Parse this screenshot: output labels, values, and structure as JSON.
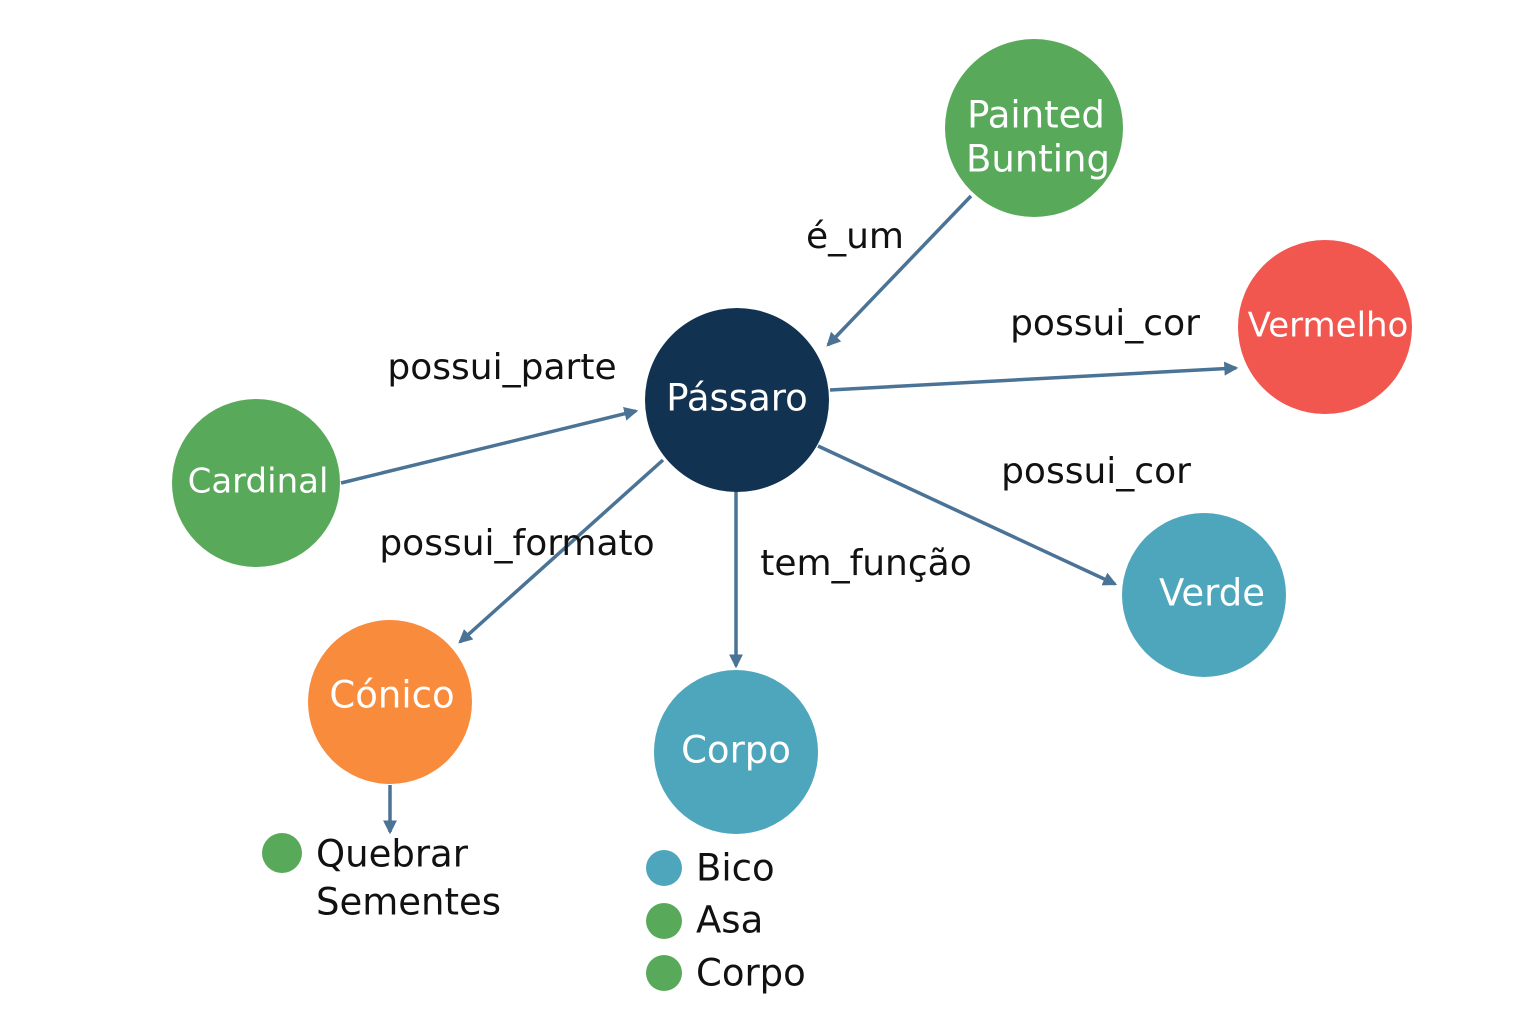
{
  "colors": {
    "edge": "#4a7396",
    "navy": "#123251",
    "green": "#58aa5a",
    "red": "#f1564f",
    "teal": "#4ea6bd",
    "orange": "#f98b3d"
  },
  "nodes": {
    "passaro": {
      "label": "Pássaro",
      "color": "#123251"
    },
    "painted_bunting": {
      "line1": "Painted",
      "line2": "Bunting",
      "color": "#58aa5a"
    },
    "vermelho": {
      "label": "Vermelho",
      "color": "#f1564f"
    },
    "cardinal": {
      "label": "Cardinal",
      "color": "#58aa5a"
    },
    "verde": {
      "label": "Verde",
      "color": "#4ea6bd"
    },
    "conico": {
      "label": "Cónico",
      "color": "#f98b3d"
    },
    "corpo": {
      "label": "Corpo",
      "color": "#4ea6bd"
    }
  },
  "edges": {
    "e_um": "é_um",
    "possui_cor_vermelho": "possui_cor",
    "possui_parte": "possui_parte",
    "possui_cor_verde": "possui_cor",
    "possui_formato": "possui_formato",
    "tem_funcao": "tem_função"
  },
  "legend_conico": {
    "color": "#58aa5a",
    "line1": "Quebrar",
    "line2": "Sementes"
  },
  "legend_corpo": [
    {
      "label": "Bico",
      "color": "#4ea6bd"
    },
    {
      "label": "Asa",
      "color": "#58aa5a"
    },
    {
      "label": "Corpo",
      "color": "#58aa5a"
    }
  ]
}
